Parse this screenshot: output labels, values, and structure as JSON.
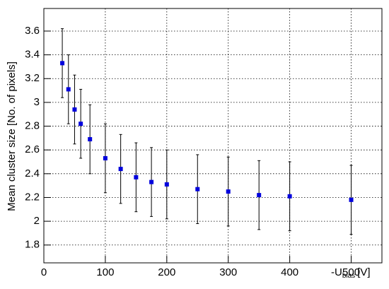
{
  "chart_data": {
    "type": "scatter",
    "y_label": "Mean cluster size [No. of pixels]",
    "x_label_parts": [
      "-U",
      "bias",
      "[V]"
    ],
    "series": [
      {
        "color": "#0000dd",
        "x": [
          30,
          40,
          50,
          60,
          75,
          100,
          125,
          150,
          175,
          200,
          250,
          300,
          350,
          400,
          500
        ],
        "values": [
          3.33,
          3.11,
          2.94,
          2.82,
          2.69,
          2.53,
          2.44,
          2.37,
          2.33,
          2.31,
          2.27,
          2.25,
          2.22,
          2.21,
          2.18
        ],
        "errors": [
          0.29,
          0.29,
          0.29,
          0.29,
          0.29,
          0.29,
          0.29,
          0.29,
          0.29,
          0.29,
          0.29,
          0.29,
          0.29,
          0.29,
          0.29
        ]
      }
    ],
    "xlim": [
      0,
      550
    ],
    "xticks": [
      0,
      100,
      200,
      300,
      400,
      500
    ],
    "ylim": [
      1.65,
      3.79
    ],
    "yticks": [
      1.8,
      2,
      2.2,
      2.4,
      2.6,
      2.8,
      3,
      3.2,
      3.4,
      3.6
    ],
    "grid": true
  }
}
